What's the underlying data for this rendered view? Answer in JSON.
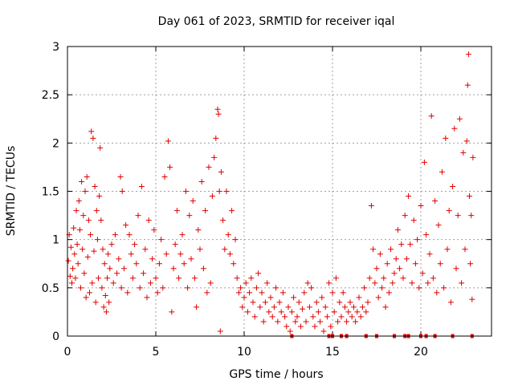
{
  "chart_data": {
    "type": "scatter",
    "title": "Day 061 of 2023, SRMTID for receiver iqal",
    "xlabel": "GPS time / hours",
    "ylabel": "SRMTID / TECUs",
    "xlim": [
      0,
      24
    ],
    "ylim": [
      0,
      3
    ],
    "grid": true,
    "x_ticks": [
      0,
      5,
      10,
      15,
      20
    ],
    "x_tick_labels": [
      "0",
      "5",
      "10",
      "15",
      "20"
    ],
    "y_ticks": [
      0,
      0.5,
      1,
      1.5,
      2,
      2.5,
      3
    ],
    "y_tick_labels": [
      "0",
      "0.5",
      "1",
      "1.5",
      "2",
      "2.5",
      "3"
    ],
    "marker": "+",
    "color": "#e00000",
    "series": [
      {
        "name": "SRMTID",
        "points": [
          [
            0.05,
            0.78
          ],
          [
            0.1,
            1.05
          ],
          [
            0.15,
            0.62
          ],
          [
            0.2,
            0.92
          ],
          [
            0.25,
            0.55
          ],
          [
            0.3,
            0.7
          ],
          [
            0.35,
            1.12
          ],
          [
            0.4,
            0.85
          ],
          [
            0.45,
            0.6
          ],
          [
            0.5,
            1.3
          ],
          [
            0.55,
            0.95
          ],
          [
            0.6,
            0.75
          ],
          [
            0.65,
            1.4
          ],
          [
            0.7,
            1.1
          ],
          [
            0.75,
            0.5
          ],
          [
            0.8,
            1.6
          ],
          [
            0.85,
            0.9
          ],
          [
            0.9,
            1.25
          ],
          [
            0.95,
            0.65
          ],
          [
            1.0,
            1.5
          ],
          [
            1.05,
            0.4
          ],
          [
            1.1,
            1.65
          ],
          [
            1.15,
            0.82
          ],
          [
            1.2,
            1.2
          ],
          [
            1.25,
            0.45
          ],
          [
            1.3,
            1.05
          ],
          [
            1.35,
            2.12
          ],
          [
            1.4,
            0.55
          ],
          [
            1.45,
            2.05
          ],
          [
            1.5,
            0.88
          ],
          [
            1.55,
            1.55
          ],
          [
            1.6,
            0.35
          ],
          [
            1.65,
            1.3
          ],
          [
            1.7,
            1.0
          ],
          [
            1.75,
            0.6
          ],
          [
            1.8,
            1.45
          ],
          [
            1.85,
            1.95
          ],
          [
            1.9,
            1.2
          ],
          [
            1.95,
            0.5
          ],
          [
            2.0,
            0.9
          ],
          [
            2.05,
            0.3
          ],
          [
            2.1,
            0.75
          ],
          [
            2.15,
            0.42
          ],
          [
            2.2,
            0.25
          ],
          [
            2.25,
            0.6
          ],
          [
            2.3,
            0.85
          ],
          [
            2.35,
            0.35
          ],
          [
            2.4,
            0.7
          ],
          [
            2.5,
            0.95
          ],
          [
            2.6,
            0.55
          ],
          [
            2.7,
            1.05
          ],
          [
            2.8,
            0.65
          ],
          [
            2.9,
            0.8
          ],
          [
            3.0,
            1.65
          ],
          [
            3.05,
            0.5
          ],
          [
            3.1,
            1.5
          ],
          [
            3.2,
            0.7
          ],
          [
            3.3,
            1.15
          ],
          [
            3.4,
            0.45
          ],
          [
            3.5,
            1.05
          ],
          [
            3.6,
            0.85
          ],
          [
            3.7,
            0.6
          ],
          [
            3.8,
            0.95
          ],
          [
            3.9,
            0.75
          ],
          [
            4.0,
            1.25
          ],
          [
            4.1,
            0.5
          ],
          [
            4.2,
            1.55
          ],
          [
            4.3,
            0.65
          ],
          [
            4.4,
            0.9
          ],
          [
            4.5,
            0.4
          ],
          [
            4.6,
            1.2
          ],
          [
            4.7,
            0.55
          ],
          [
            4.8,
            0.8
          ],
          [
            4.9,
            1.1
          ],
          [
            5.0,
            0.6
          ],
          [
            5.1,
            0.45
          ],
          [
            5.2,
            0.75
          ],
          [
            5.3,
            1.0
          ],
          [
            5.4,
            0.5
          ],
          [
            5.5,
            1.65
          ],
          [
            5.6,
            0.85
          ],
          [
            5.7,
            2.02
          ],
          [
            5.8,
            1.75
          ],
          [
            5.9,
            0.25
          ],
          [
            6.0,
            0.7
          ],
          [
            6.1,
            0.95
          ],
          [
            6.2,
            1.3
          ],
          [
            6.3,
            0.6
          ],
          [
            6.4,
            0.85
          ],
          [
            6.5,
            1.05
          ],
          [
            6.6,
            0.75
          ],
          [
            6.7,
            1.5
          ],
          [
            6.8,
            0.5
          ],
          [
            6.9,
            1.25
          ],
          [
            7.0,
            0.8
          ],
          [
            7.1,
            1.4
          ],
          [
            7.2,
            0.6
          ],
          [
            7.3,
            0.3
          ],
          [
            7.4,
            1.1
          ],
          [
            7.5,
            0.9
          ],
          [
            7.6,
            1.6
          ],
          [
            7.7,
            0.7
          ],
          [
            7.8,
            1.3
          ],
          [
            7.9,
            0.45
          ],
          [
            8.0,
            1.75
          ],
          [
            8.1,
            0.55
          ],
          [
            8.2,
            1.45
          ],
          [
            8.3,
            1.85
          ],
          [
            8.4,
            2.05
          ],
          [
            8.5,
            2.35
          ],
          [
            8.55,
            2.3
          ],
          [
            8.6,
            1.5
          ],
          [
            8.65,
            0.05
          ],
          [
            8.7,
            1.7
          ],
          [
            8.8,
            1.2
          ],
          [
            8.9,
            0.9
          ],
          [
            9.0,
            1.5
          ],
          [
            9.1,
            1.05
          ],
          [
            9.2,
            0.85
          ],
          [
            9.3,
            1.3
          ],
          [
            9.4,
            0.75
          ],
          [
            9.5,
            1.0
          ],
          [
            9.6,
            0.6
          ],
          [
            9.7,
            0.45
          ],
          [
            9.8,
            0.5
          ],
          [
            9.9,
            0.3
          ],
          [
            10.0,
            0.4
          ],
          [
            10.1,
            0.55
          ],
          [
            10.2,
            0.25
          ],
          [
            10.3,
            0.45
          ],
          [
            10.4,
            0.6
          ],
          [
            10.5,
            0.35
          ],
          [
            10.6,
            0.2
          ],
          [
            10.7,
            0.5
          ],
          [
            10.8,
            0.65
          ],
          [
            10.9,
            0.3
          ],
          [
            11.0,
            0.45
          ],
          [
            11.1,
            0.15
          ],
          [
            11.2,
            0.35
          ],
          [
            11.3,
            0.55
          ],
          [
            11.4,
            0.25
          ],
          [
            11.5,
            0.4
          ],
          [
            11.6,
            0.2
          ],
          [
            11.7,
            0.3
          ],
          [
            11.8,
            0.5
          ],
          [
            11.9,
            0.15
          ],
          [
            12.0,
            0.35
          ],
          [
            12.1,
            0.25
          ],
          [
            12.2,
            0.45
          ],
          [
            12.3,
            0.2
          ],
          [
            12.4,
            0.1
          ],
          [
            12.5,
            0.3
          ],
          [
            12.6,
            0.05
          ],
          [
            12.7,
            0.25
          ],
          [
            12.8,
            0.4
          ],
          [
            12.9,
            0.15
          ],
          [
            13.0,
            0.2
          ],
          [
            13.1,
            0.35
          ],
          [
            13.2,
            0.1
          ],
          [
            13.3,
            0.28
          ],
          [
            13.4,
            0.45
          ],
          [
            13.5,
            0.15
          ],
          [
            13.6,
            0.55
          ],
          [
            13.7,
            0.3
          ],
          [
            13.8,
            0.5
          ],
          [
            13.9,
            0.2
          ],
          [
            14.0,
            0.1
          ],
          [
            14.1,
            0.35
          ],
          [
            14.2,
            0.25
          ],
          [
            14.3,
            0.15
          ],
          [
            14.4,
            0.4
          ],
          [
            14.5,
            0.05
          ],
          [
            14.6,
            0.3
          ],
          [
            14.7,
            0.2
          ],
          [
            14.8,
            0.55
          ],
          [
            14.9,
            0.1
          ],
          [
            15.0,
            0.45
          ],
          [
            15.1,
            0.25
          ],
          [
            15.2,
            0.6
          ],
          [
            15.3,
            0.15
          ],
          [
            15.4,
            0.35
          ],
          [
            15.5,
            0.2
          ],
          [
            15.6,
            0.45
          ],
          [
            15.7,
            0.3
          ],
          [
            15.8,
            0.15
          ],
          [
            15.9,
            0.25
          ],
          [
            16.0,
            0.35
          ],
          [
            16.1,
            0.2
          ],
          [
            16.2,
            0.3
          ],
          [
            16.3,
            0.15
          ],
          [
            16.4,
            0.25
          ],
          [
            16.5,
            0.4
          ],
          [
            16.6,
            0.2
          ],
          [
            16.7,
            0.3
          ],
          [
            16.8,
            0.5
          ],
          [
            16.9,
            0.25
          ],
          [
            17.0,
            0.35
          ],
          [
            17.1,
            0.6
          ],
          [
            17.2,
            1.35
          ],
          [
            17.3,
            0.9
          ],
          [
            17.4,
            0.55
          ],
          [
            17.5,
            0.7
          ],
          [
            17.6,
            0.4
          ],
          [
            17.7,
            0.85
          ],
          [
            17.8,
            0.5
          ],
          [
            17.9,
            0.6
          ],
          [
            18.0,
            0.3
          ],
          [
            18.1,
            0.75
          ],
          [
            18.2,
            0.45
          ],
          [
            18.3,
            0.9
          ],
          [
            18.4,
            0.55
          ],
          [
            18.5,
            0.65
          ],
          [
            18.6,
            0.8
          ],
          [
            18.7,
            1.1
          ],
          [
            18.8,
            0.7
          ],
          [
            18.9,
            0.95
          ],
          [
            19.0,
            0.6
          ],
          [
            19.1,
            1.25
          ],
          [
            19.2,
            0.8
          ],
          [
            19.3,
            1.45
          ],
          [
            19.4,
            0.95
          ],
          [
            19.5,
            0.55
          ],
          [
            19.6,
            1.2
          ],
          [
            19.7,
            0.75
          ],
          [
            19.8,
            1.0
          ],
          [
            19.9,
            0.5
          ],
          [
            20.0,
            1.35
          ],
          [
            20.1,
            0.65
          ],
          [
            20.2,
            1.8
          ],
          [
            20.3,
            1.05
          ],
          [
            20.4,
            0.55
          ],
          [
            20.5,
            0.85
          ],
          [
            20.6,
            2.28
          ],
          [
            20.7,
            0.6
          ],
          [
            20.8,
            1.4
          ],
          [
            20.9,
            0.45
          ],
          [
            21.0,
            1.15
          ],
          [
            21.1,
            0.75
          ],
          [
            21.2,
            1.7
          ],
          [
            21.3,
            0.5
          ],
          [
            21.4,
            2.05
          ],
          [
            21.5,
            0.9
          ],
          [
            21.6,
            1.3
          ],
          [
            21.7,
            0.35
          ],
          [
            21.8,
            1.55
          ],
          [
            21.9,
            2.15
          ],
          [
            22.0,
            0.7
          ],
          [
            22.1,
            1.25
          ],
          [
            22.2,
            2.25
          ],
          [
            22.3,
            0.55
          ],
          [
            22.4,
            1.9
          ],
          [
            22.5,
            0.9
          ],
          [
            22.6,
            2.02
          ],
          [
            22.65,
            2.6
          ],
          [
            22.7,
            2.92
          ],
          [
            22.75,
            1.45
          ],
          [
            22.8,
            0.75
          ],
          [
            22.85,
            1.25
          ],
          [
            22.9,
            0.38
          ],
          [
            22.95,
            1.85
          ]
        ],
        "zero_markers": [
          12.7,
          14.8,
          15.0,
          15.5,
          15.8,
          16.9,
          17.5,
          18.5,
          19.1,
          19.3,
          20.0,
          20.3,
          20.8,
          21.8,
          22.9
        ]
      }
    ]
  }
}
